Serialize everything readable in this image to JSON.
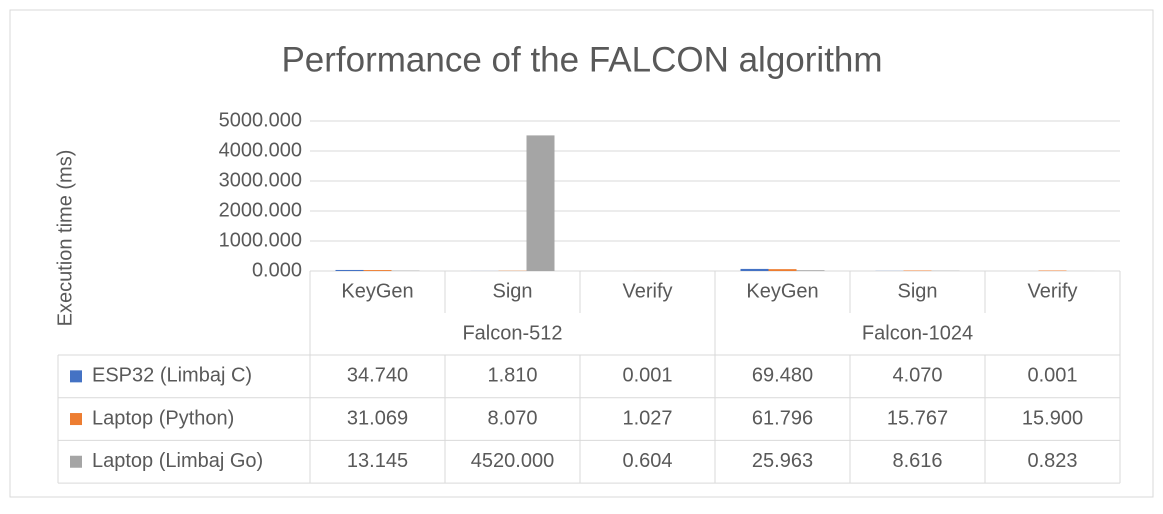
{
  "chart_data": {
    "type": "bar",
    "title": "Performance of the FALCON algorithm",
    "y_label": "Execution time (ms)",
    "groups": [
      {
        "label": "Falcon-512",
        "categories": [
          "KeyGen",
          "Sign",
          "Verify"
        ]
      },
      {
        "label": "Falcon-1024",
        "categories": [
          "KeyGen",
          "Sign",
          "Verify"
        ]
      }
    ],
    "series": [
      {
        "name": "ESP32 (Limbaj C)",
        "color": "#4472c4",
        "values": [
          34.74,
          1.81,
          0.001,
          69.48,
          4.07,
          0.001
        ],
        "value_labels": [
          "34.740",
          "1.810",
          "0.001",
          "69.480",
          "4.070",
          "0.001"
        ]
      },
      {
        "name": "Laptop (Python)",
        "color": "#ed7d31",
        "values": [
          31.069,
          8.07,
          1.027,
          61.796,
          15.767,
          15.9
        ],
        "value_labels": [
          "31.069",
          "8.070",
          "1.027",
          "61.796",
          "15.767",
          "15.900"
        ]
      },
      {
        "name": "Laptop (Limbaj Go)",
        "color": "#a5a5a5",
        "values": [
          13.145,
          4520,
          0.604,
          25.963,
          8.616,
          0.823
        ],
        "value_labels": [
          "13.145",
          "4520.000",
          "0.604",
          "25.963",
          "8.616",
          "0.823"
        ]
      }
    ],
    "ylim": [
      0,
      5000
    ],
    "yticks": [
      {
        "value": 0,
        "label": "0.000"
      },
      {
        "value": 1000,
        "label": "1000.000"
      },
      {
        "value": 2000,
        "label": "2000.000"
      },
      {
        "value": 3000,
        "label": "3000.000"
      },
      {
        "value": 4000,
        "label": "4000.000"
      },
      {
        "value": 5000,
        "label": "5000.000"
      }
    ],
    "grid": true
  }
}
